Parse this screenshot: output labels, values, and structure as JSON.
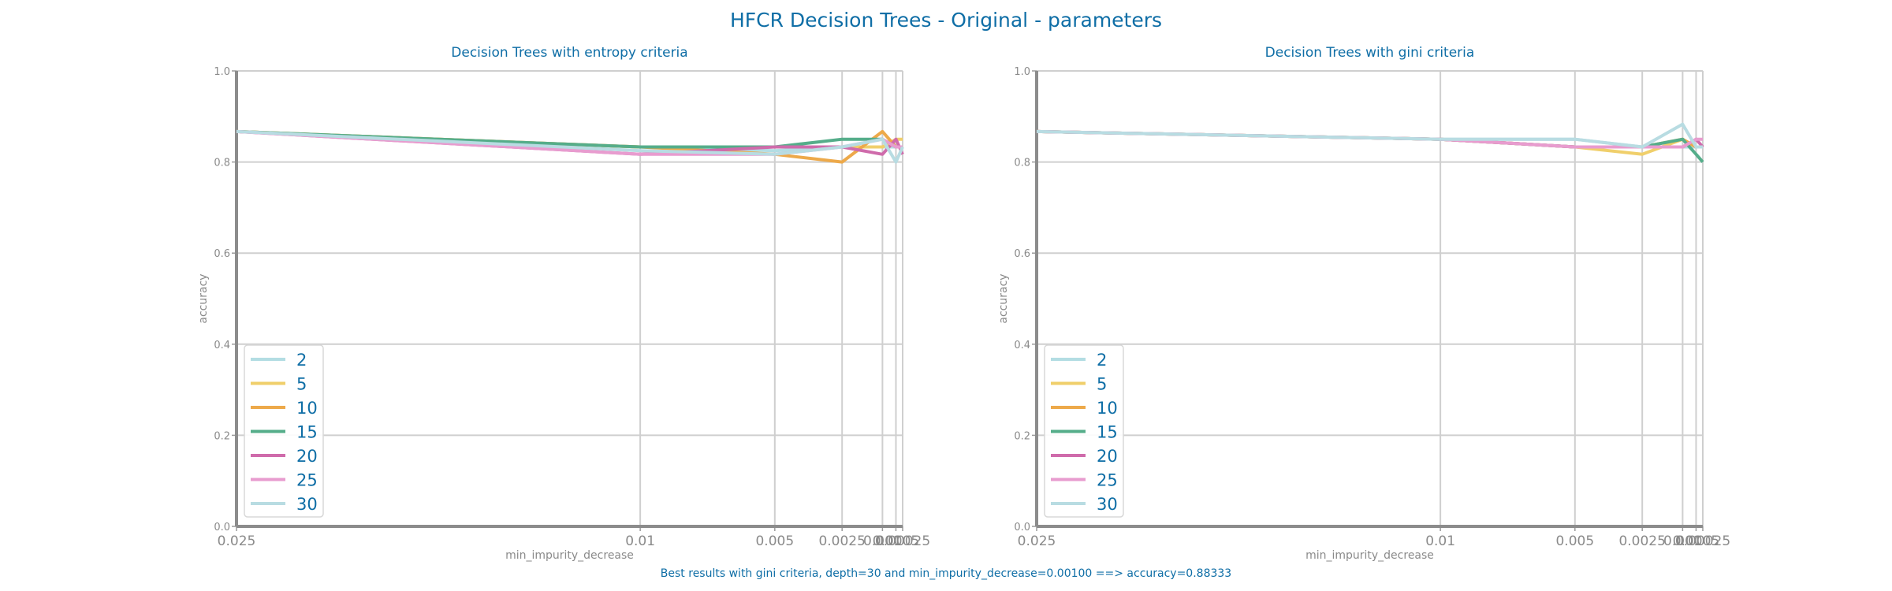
{
  "figure": {
    "title": "HFCR Decision Trees - Original - parameters",
    "footer": "Best results with gini criteria, depth=30 and min_impurity_decrease=0.00100 ==> accuracy=0.88333"
  },
  "palette": [
    "#b3dde3",
    "#f0cf6b",
    "#eda94a",
    "#55ad8a",
    "#cf6bab",
    "#e89ccf",
    "#b8dce2"
  ],
  "chart_data": [
    {
      "type": "line",
      "title": "Decision Trees with entropy criteria",
      "xlabel": "min_impurity_decrease",
      "ylabel": "accuracy",
      "ylim": [
        0,
        1
      ],
      "yticks": [
        "0.0",
        "0.2",
        "0.4",
        "0.6",
        "0.8",
        "1.0"
      ],
      "x": [
        "0.025",
        "0.01",
        "0.005",
        "0.0025",
        "0.001",
        "0.0005",
        "0.00025"
      ],
      "grid": true,
      "legend_position": "lower-left",
      "series": [
        {
          "name": "2",
          "values": [
            0.867,
            0.833,
            0.825,
            0.833,
            0.833,
            0.833,
            0.833
          ]
        },
        {
          "name": "5",
          "values": [
            0.867,
            0.833,
            0.833,
            0.833,
            0.833,
            0.85,
            0.85
          ]
        },
        {
          "name": "10",
          "values": [
            0.867,
            0.833,
            0.817,
            0.8,
            0.867,
            0.833,
            0.833
          ]
        },
        {
          "name": "15",
          "values": [
            0.867,
            0.833,
            0.833,
            0.85,
            0.85,
            0.833,
            0.833
          ]
        },
        {
          "name": "20",
          "values": [
            0.867,
            0.817,
            0.833,
            0.833,
            0.817,
            0.85,
            0.817
          ]
        },
        {
          "name": "25",
          "values": [
            0.867,
            0.817,
            0.817,
            0.833,
            0.85,
            0.833,
            0.833
          ]
        },
        {
          "name": "30",
          "values": [
            0.867,
            0.825,
            0.817,
            0.833,
            0.85,
            0.8,
            0.833
          ]
        }
      ]
    },
    {
      "type": "line",
      "title": "Decision Trees with gini criteria",
      "xlabel": "min_impurity_decrease",
      "ylabel": "accuracy",
      "ylim": [
        0,
        1
      ],
      "yticks": [
        "0.0",
        "0.2",
        "0.4",
        "0.6",
        "0.8",
        "1.0"
      ],
      "x": [
        "0.025",
        "0.01",
        "0.005",
        "0.0025",
        "0.001",
        "0.0005",
        "0.00025"
      ],
      "grid": true,
      "legend_position": "lower-left",
      "series": [
        {
          "name": "2",
          "values": [
            0.867,
            0.85,
            0.85,
            0.833,
            0.833,
            0.833,
            0.833
          ]
        },
        {
          "name": "5",
          "values": [
            0.867,
            0.85,
            0.833,
            0.817,
            0.85,
            0.833,
            0.833
          ]
        },
        {
          "name": "10",
          "values": [
            0.867,
            0.85,
            0.833,
            0.833,
            0.85,
            0.833,
            0.833
          ]
        },
        {
          "name": "15",
          "values": [
            0.867,
            0.85,
            0.833,
            0.833,
            0.85,
            0.817,
            0.8
          ]
        },
        {
          "name": "20",
          "values": [
            0.867,
            0.85,
            0.833,
            0.833,
            0.833,
            0.85,
            0.833
          ]
        },
        {
          "name": "25",
          "values": [
            0.867,
            0.85,
            0.833,
            0.833,
            0.833,
            0.85,
            0.85
          ]
        },
        {
          "name": "30",
          "values": [
            0.867,
            0.85,
            0.85,
            0.833,
            0.883,
            0.833,
            0.833
          ]
        }
      ]
    }
  ]
}
